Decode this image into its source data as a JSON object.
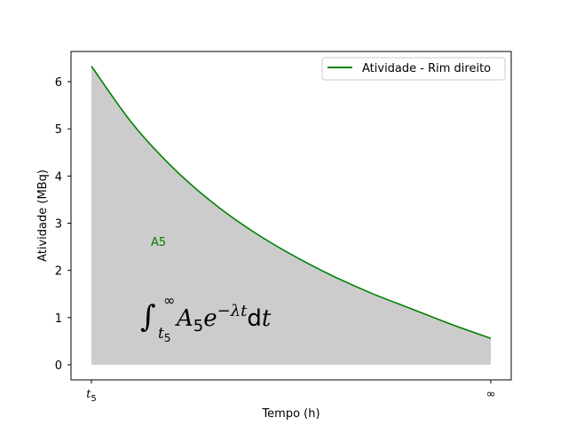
{
  "chart_data": {
    "type": "area",
    "title": "",
    "xlabel": "Tempo (h)",
    "ylabel": "Atividade (MBq)",
    "x_tick_labels": [
      "t5",
      "∞"
    ],
    "yticks": [
      0,
      1,
      2,
      3,
      4,
      5,
      6
    ],
    "ylim": [
      -0.32,
      6.64
    ],
    "grid": false,
    "legend_position": "top-right",
    "series": [
      {
        "name": "Atividade - Rim direito",
        "color": "#008000",
        "fill_color": "#cccccc",
        "x": [
          0,
          0.1,
          0.2,
          0.3,
          0.4,
          0.5,
          0.6,
          0.7,
          0.8,
          0.9,
          1.0
        ],
        "y": [
          6.33,
          5.14,
          4.21,
          3.46,
          2.85,
          2.34,
          1.9,
          1.52,
          1.19,
          0.86,
          0.56
        ]
      }
    ],
    "annotations": {
      "label": "A5",
      "label_color": "#008000",
      "formula": {
        "integral": "∫",
        "lower_limit": "t",
        "lower_limit_subscript": "5",
        "upper_limit": "∞",
        "body_symbol": "A",
        "body_subscript": "5",
        "exp_base": "e",
        "exponent": "−λt",
        "differential": "d",
        "differential_var": "t"
      }
    }
  }
}
